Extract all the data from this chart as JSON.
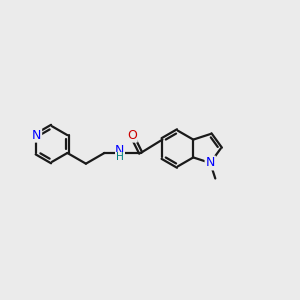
{
  "background_color": "#ebebeb",
  "bond_color": "#1a1a1a",
  "nitrogen_color": "#0000ff",
  "oxygen_color": "#cc0000",
  "nh_color": "#008080",
  "figsize": [
    3.0,
    3.0
  ],
  "dpi": 100,
  "lw": 1.6,
  "sep": 0.055,
  "fs": 9.0,
  "xlim": [
    0,
    10
  ],
  "ylim": [
    2.5,
    7.5
  ]
}
